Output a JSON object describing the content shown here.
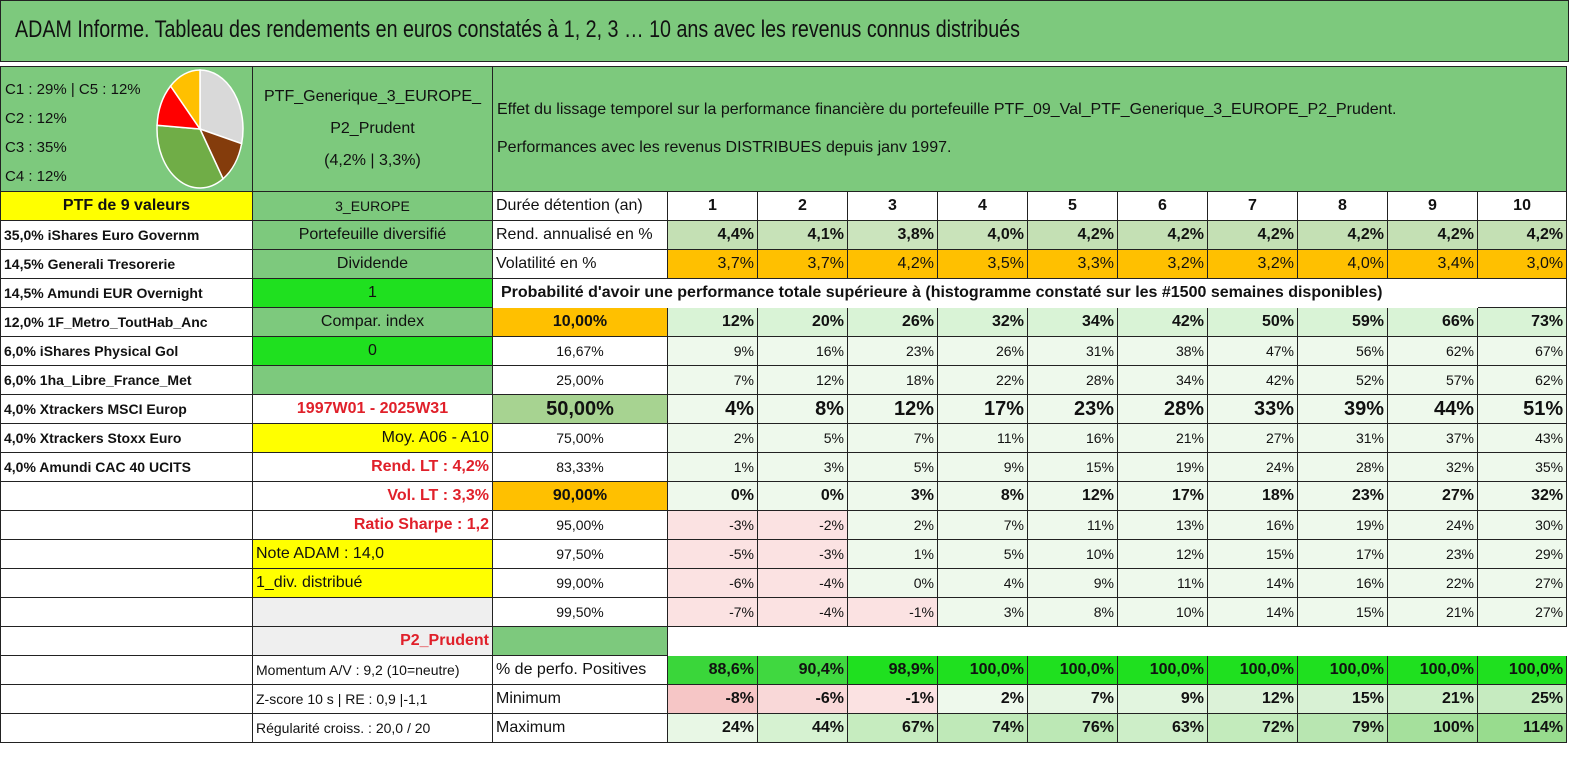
{
  "title": "ADAM Informe. Tableau des rendements en euros constatés à 1, 2, 3 … 10 ans avec les revenus connus distribués",
  "legend": [
    "C1 : 29% | C5 : 12%",
    "C2 : 12%",
    "C3 : 35%",
    "C4 : 12%"
  ],
  "pie_colors": [
    "#d9d9d9",
    "#843c0c",
    "#70ad47",
    "#ff0000",
    "#ffc000"
  ],
  "ptf": {
    "line1": "PTF_Generique_3_EUROPE_",
    "line2": "P2_Prudent",
    "line3": "(4,2% | 3,3%)"
  },
  "effect": {
    "line1": "Effet du lissage temporel sur la performance financière du portefeuille PTF_09_Val_PTF_Generique_3_EUROPE_P2_Prudent.",
    "line2": "Performances avec les revenus DISTRIBUES depuis janv 1997."
  },
  "col1": [
    "PTF de 9 valeurs",
    "35,0% iShares Euro Governm",
    "14,5% Generali Tresorerie",
    "14,5% Amundi EUR Overnight",
    "12,0% 1F_Metro_ToutHab_Anc",
    "6,0% iShares Physical Gol",
    "6,0% 1ha_Libre_France_Met",
    "4,0% Xtrackers MSCI Europ",
    "4,0% Xtrackers Stoxx Euro",
    "4,0% Amundi CAC 40 UCITS"
  ],
  "col2": [
    "3_EUROPE",
    "Portefeuille diversifié",
    "Dividende",
    "1",
    "Compar. index",
    "0",
    "",
    "1997W01 - 2025W31",
    "Moy. A06 - A10",
    "Rend. LT : 4,2%",
    "Vol. LT : 3,3%",
    "Ratio Sharpe : 1,2",
    "Note ADAM : 14,0",
    "1_div. distribué",
    "",
    "P2_Prudent",
    "Momentum A/V : 9,2 (10=neutre)",
    "Z-score 10 s | RE : 0,9 |-1,1",
    "Régularité croiss. : 20,0 / 20"
  ],
  "hold_label": "Durée détention (an)",
  "years": [
    "1",
    "2",
    "3",
    "4",
    "5",
    "6",
    "7",
    "8",
    "9",
    "10"
  ],
  "rend_label": "Rend. annualisé en %",
  "rend": [
    "4,4%",
    "4,1%",
    "3,8%",
    "4,0%",
    "4,2%",
    "4,2%",
    "4,2%",
    "4,2%",
    "4,2%",
    "4,2%"
  ],
  "vol_label": "Volatilité en %",
  "vol": [
    "3,7%",
    "3,7%",
    "4,2%",
    "3,5%",
    "3,3%",
    "3,2%",
    "3,2%",
    "4,0%",
    "3,4%",
    "3,0%"
  ],
  "prob_label": "Probabilité d'avoir une performance totale supérieure à (histogramme constaté sur les #1500 semaines disponibles)",
  "quantiles": [
    {
      "q": "10,00%",
      "v": [
        "12%",
        "20%",
        "26%",
        "32%",
        "34%",
        "42%",
        "50%",
        "59%",
        "66%",
        "73%"
      ]
    },
    {
      "q": "16,67%",
      "v": [
        "9%",
        "16%",
        "23%",
        "26%",
        "31%",
        "38%",
        "47%",
        "56%",
        "62%",
        "67%"
      ]
    },
    {
      "q": "25,00%",
      "v": [
        "7%",
        "12%",
        "18%",
        "22%",
        "28%",
        "34%",
        "42%",
        "52%",
        "57%",
        "62%"
      ]
    },
    {
      "q": "50,00%",
      "v": [
        "4%",
        "8%",
        "12%",
        "17%",
        "23%",
        "28%",
        "33%",
        "39%",
        "44%",
        "51%"
      ]
    },
    {
      "q": "75,00%",
      "v": [
        "2%",
        "5%",
        "7%",
        "11%",
        "16%",
        "21%",
        "27%",
        "31%",
        "37%",
        "43%"
      ]
    },
    {
      "q": "83,33%",
      "v": [
        "1%",
        "3%",
        "5%",
        "9%",
        "15%",
        "19%",
        "24%",
        "28%",
        "32%",
        "35%"
      ]
    },
    {
      "q": "90,00%",
      "v": [
        "0%",
        "0%",
        "3%",
        "8%",
        "12%",
        "17%",
        "18%",
        "23%",
        "27%",
        "32%"
      ]
    },
    {
      "q": "95,00%",
      "v": [
        "-3%",
        "-2%",
        "2%",
        "7%",
        "11%",
        "13%",
        "16%",
        "19%",
        "24%",
        "30%"
      ]
    },
    {
      "q": "97,50%",
      "v": [
        "-5%",
        "-3%",
        "1%",
        "5%",
        "10%",
        "12%",
        "15%",
        "17%",
        "23%",
        "29%"
      ]
    },
    {
      "q": "99,00%",
      "v": [
        "-6%",
        "-4%",
        "0%",
        "4%",
        "9%",
        "11%",
        "14%",
        "16%",
        "22%",
        "27%"
      ]
    },
    {
      "q": "99,50%",
      "v": [
        "-7%",
        "-4%",
        "-1%",
        "3%",
        "8%",
        "10%",
        "14%",
        "15%",
        "21%",
        "27%"
      ]
    }
  ],
  "pos_label": "% de perfo. Positives",
  "pos": [
    "88,6%",
    "90,4%",
    "98,9%",
    "100,0%",
    "100,0%",
    "100,0%",
    "100,0%",
    "100,0%",
    "100,0%",
    "100,0%"
  ],
  "min_label": "Minimum",
  "min": [
    "-8%",
    "-6%",
    "-1%",
    "2%",
    "7%",
    "9%",
    "12%",
    "15%",
    "21%",
    "25%"
  ],
  "max_label": "Maximum",
  "max": [
    "24%",
    "44%",
    "67%",
    "74%",
    "76%",
    "63%",
    "72%",
    "79%",
    "100%",
    "114%"
  ]
}
